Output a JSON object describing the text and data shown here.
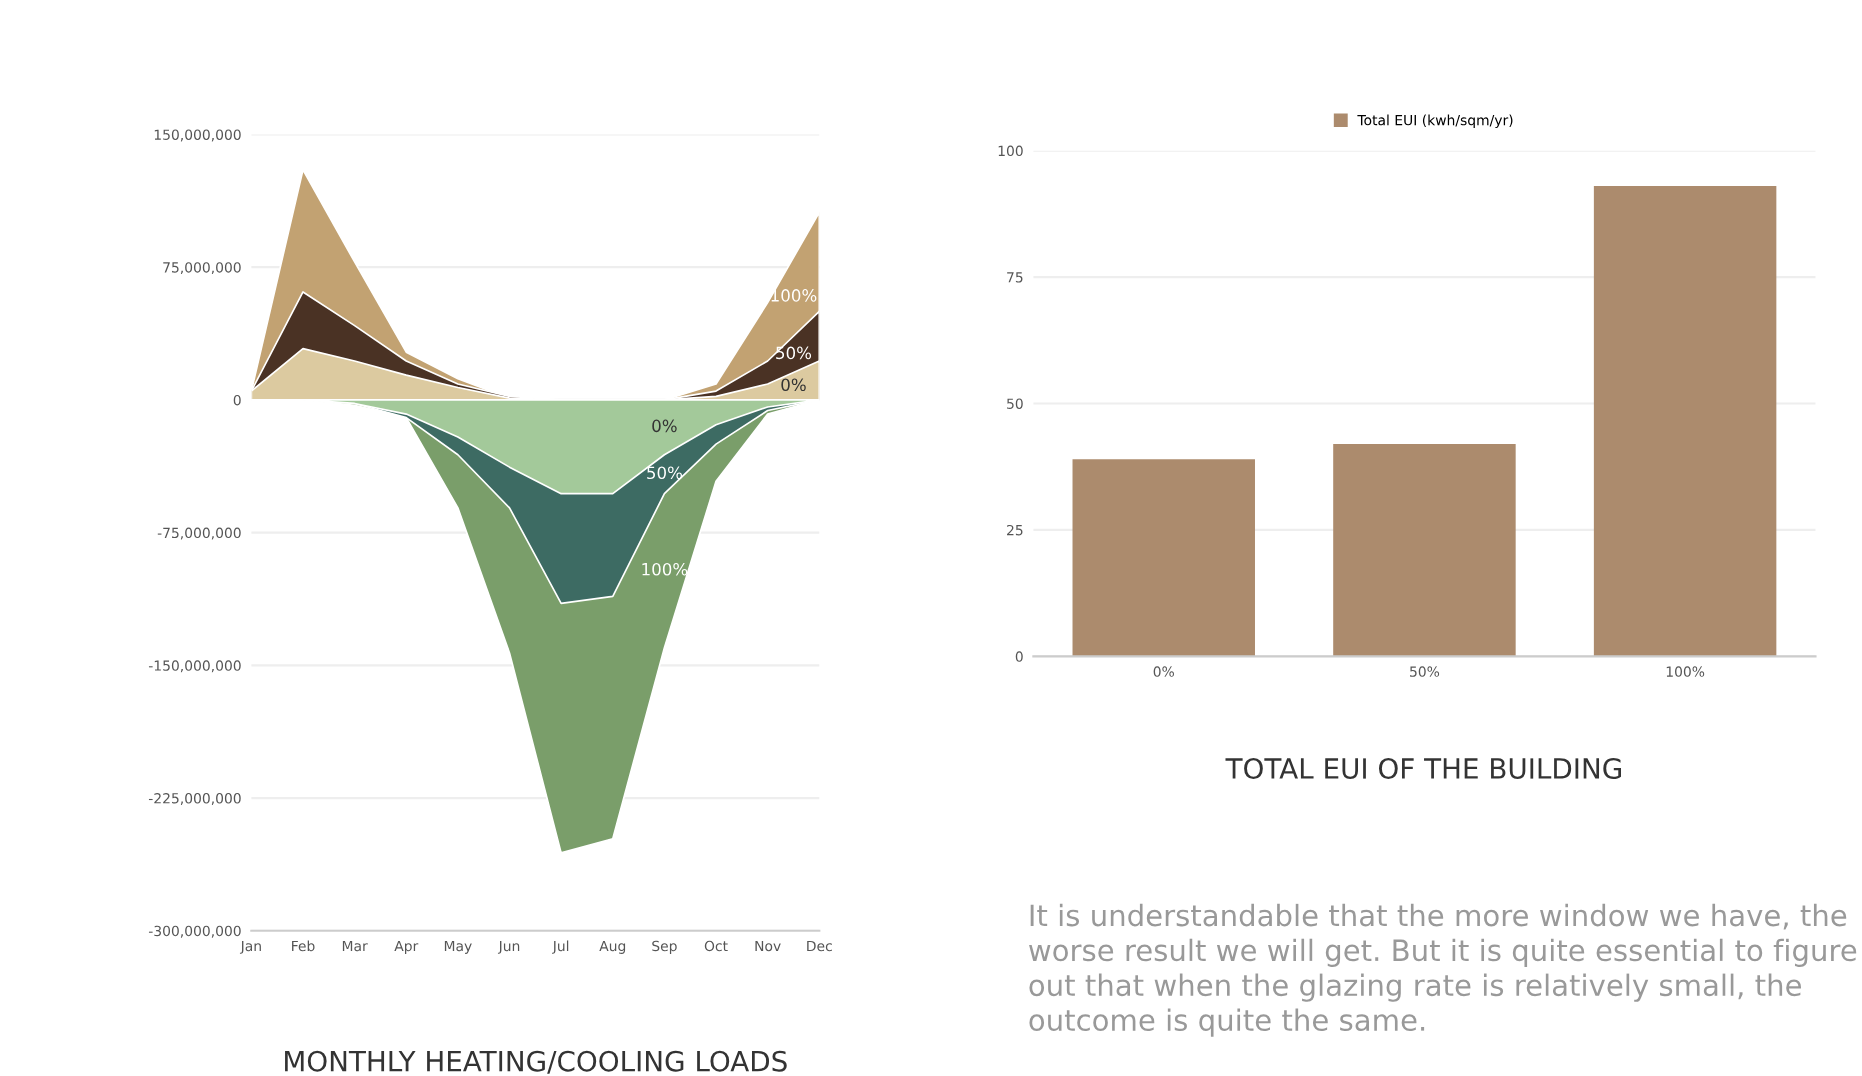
{
  "chart_data": [
    {
      "type": "area",
      "title": "MONTHLY HEATING/COOLING LOADS",
      "categories": [
        "Jan",
        "Feb",
        "Mar",
        "Apr",
        "May",
        "Jun",
        "Jul",
        "Aug",
        "Sep",
        "Oct",
        "Nov",
        "Dec"
      ],
      "series": [
        {
          "name": "100%",
          "color": "#c2a272",
          "values": [
            5000000,
            130000000,
            78000000,
            27000000,
            12000000,
            1000000,
            0,
            0,
            0,
            9000000,
            55000000,
            106000000
          ]
        },
        {
          "name": "50%",
          "color": "#4a3224",
          "values": [
            5000000,
            61000000,
            42000000,
            22000000,
            9000000,
            2000000,
            0,
            0,
            0,
            5000000,
            22000000,
            50000000
          ]
        },
        {
          "name": "0%",
          "color": "#dccaa0",
          "values": [
            5000000,
            29000000,
            22000000,
            14000000,
            7000000,
            1000000,
            0,
            0,
            0,
            2000000,
            9000000,
            22000000
          ]
        },
        {
          "name": "100%",
          "color": "#7a9e6a",
          "values": [
            0,
            0,
            -3000000,
            -10000000,
            -61000000,
            -143000000,
            -256000000,
            -248000000,
            -140000000,
            -46000000,
            -8000000,
            0
          ]
        },
        {
          "name": "50%",
          "color": "#3d6b63",
          "values": [
            0,
            0,
            -2000000,
            -10000000,
            -31000000,
            -61000000,
            -115000000,
            -111000000,
            -53000000,
            -25000000,
            -6000000,
            0
          ]
        },
        {
          "name": "0%",
          "color": "#a3c99a",
          "values": [
            0,
            0,
            -2000000,
            -8000000,
            -21000000,
            -38000000,
            -53000000,
            -53000000,
            -31000000,
            -14000000,
            -4000000,
            0
          ]
        }
      ],
      "ylim": [
        -300000000,
        150000000
      ],
      "yticks": [
        {
          "value": -300000000,
          "label": "-300,000,000"
        },
        {
          "value": -225000000,
          "label": "-225,000,000"
        },
        {
          "value": -150000000,
          "label": "-150,000,000"
        },
        {
          "value": -75000000,
          "label": "-75,000,000"
        },
        0,
        {
          "value": 75000000,
          "label": "75,000,000"
        },
        {
          "value": 150000000,
          "label": "150,000,000"
        }
      ],
      "grid": "y",
      "legend": false
    },
    {
      "type": "bar",
      "title": "TOTAL EUI OF THE BUILDING",
      "categories": [
        "0%",
        "50%",
        "100%"
      ],
      "series": [
        {
          "name": "Total EUI (kwh/sqm/yr)",
          "color": "#ac8b6d",
          "values": [
            39,
            42,
            93
          ]
        }
      ],
      "ylim": [
        0,
        100
      ],
      "yticks": [
        0,
        25,
        50,
        75,
        100
      ],
      "grid": "y",
      "legend": "top",
      "annotations": [
        "It is understandable that the more window we have, the worse result we will get. But it is quite essential to figure out that when the glazing rate is relatively small, the outcome is quite the same."
      ]
    }
  ]
}
